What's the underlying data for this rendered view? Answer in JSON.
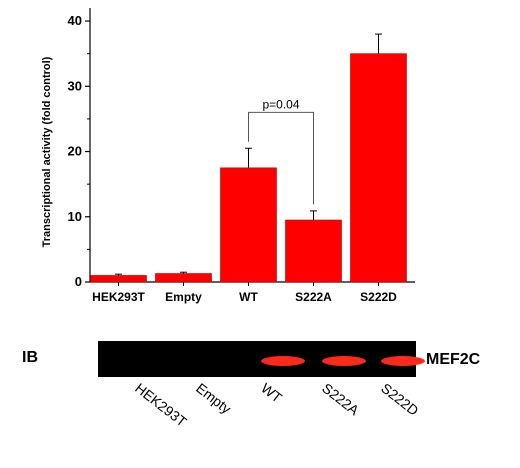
{
  "chart_data": {
    "type": "bar",
    "categories": [
      "HEK293T",
      "Empty",
      "WT",
      "S222A",
      "S222D"
    ],
    "values": [
      1.0,
      1.3,
      17.5,
      9.5,
      35.0
    ],
    "errors": [
      0.2,
      0.2,
      3.0,
      1.4,
      3.0
    ],
    "ylabel": "Transcriptional activity (fold control)",
    "ylim": [
      0,
      42
    ],
    "yticks": [
      0,
      10,
      20,
      30,
      40
    ],
    "bar_color": "#ff0000",
    "grid": false,
    "annotation": {
      "text": "p=0.04",
      "between": [
        "WT",
        "S222A"
      ]
    }
  },
  "blot": {
    "label_left": "IB",
    "label_right": "MEF2C",
    "background_color": "#000000",
    "band_color": "#ff2a1a",
    "lanes": [
      {
        "label": "HEK293T",
        "band": false
      },
      {
        "label": "Empty",
        "band": false
      },
      {
        "label": "WT",
        "band": true
      },
      {
        "label": "S222A",
        "band": true
      },
      {
        "label": "S222D",
        "band": true
      }
    ]
  }
}
